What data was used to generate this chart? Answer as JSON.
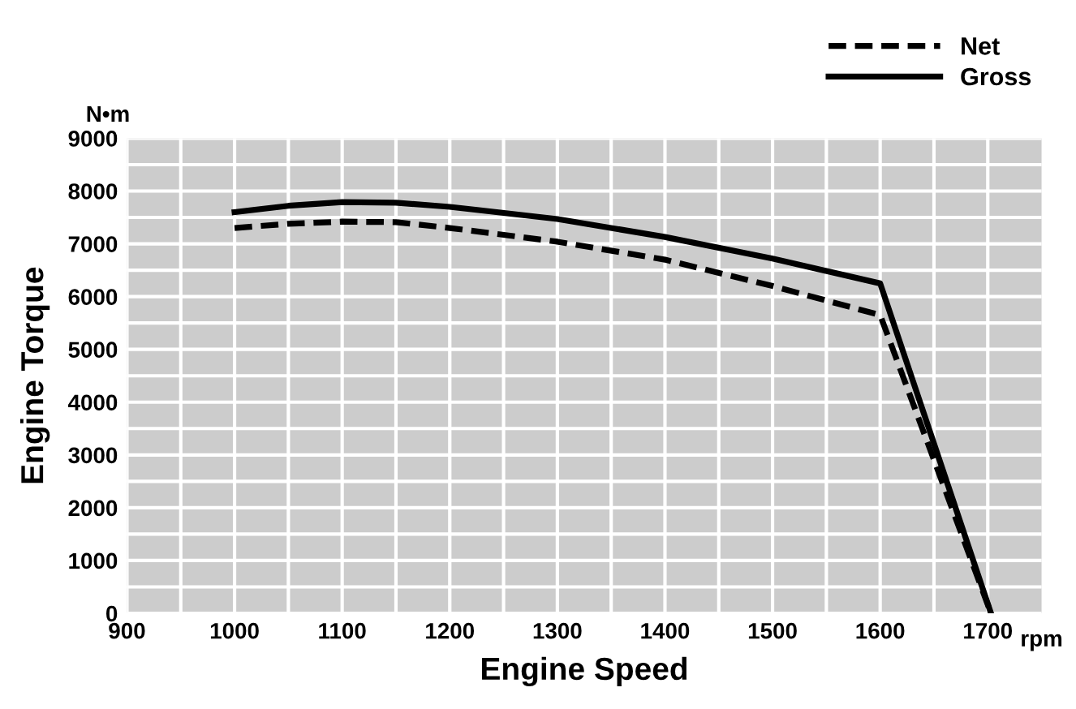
{
  "chart_data": {
    "type": "line",
    "xlabel": "Engine Speed",
    "ylabel": "Engine Torque",
    "annotations": [
      "N•m",
      "rpm"
    ],
    "xlim": [
      900,
      1750
    ],
    "ylim": [
      0,
      9000
    ],
    "xticks": [
      900,
      {
        "value": 950,
        "label": null
      },
      1000,
      {
        "value": 1050,
        "label": null
      },
      1100,
      {
        "value": 1150,
        "label": null
      },
      1200,
      {
        "value": 1250,
        "label": null
      },
      1300,
      {
        "value": 1350,
        "label": null
      },
      1400,
      {
        "value": 1450,
        "label": null
      },
      1500,
      {
        "value": 1550,
        "label": null
      },
      1600,
      {
        "value": 1650,
        "label": null
      },
      1700
    ],
    "yticks": [
      0,
      {
        "value": 500,
        "label": null
      },
      1000,
      {
        "value": 1500,
        "label": null
      },
      2000,
      {
        "value": 2500,
        "label": null
      },
      3000,
      {
        "value": 3500,
        "label": null
      },
      4000,
      {
        "value": 4500,
        "label": null
      },
      5000,
      {
        "value": 5500,
        "label": null
      },
      6000,
      {
        "value": 6500,
        "label": null
      },
      7000,
      {
        "value": 7500,
        "label": null
      },
      8000,
      {
        "value": 8500,
        "label": null
      },
      9000
    ],
    "grid": true,
    "legend": "top right",
    "marker": "none",
    "series": [
      {
        "name": "Net",
        "color": "#000000",
        "line_style": "dashed",
        "x": [
          1000,
          1050,
          1100,
          1150,
          1200,
          1300,
          1400,
          1500,
          1600,
          1703
        ],
        "values": [
          7300,
          7380,
          7420,
          7410,
          7300,
          7040,
          6700,
          6200,
          5650,
          0
        ]
      },
      {
        "name": "Gross",
        "color": "#000000",
        "line_style": "solid",
        "x": [
          1000,
          1050,
          1100,
          1150,
          1200,
          1300,
          1400,
          1500,
          1600,
          1703
        ],
        "values": [
          7600,
          7720,
          7790,
          7780,
          7700,
          7470,
          7130,
          6720,
          6250,
          0
        ]
      }
    ]
  }
}
